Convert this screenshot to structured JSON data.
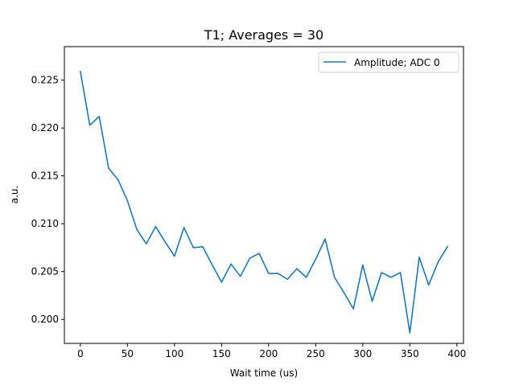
{
  "chart_data": {
    "type": "line",
    "title": "T1; Averages = 30",
    "xlabel": "Wait time (us)",
    "ylabel": "a.u.",
    "xlim": [
      -17,
      407
    ],
    "ylim": [
      0.1975,
      0.2285
    ],
    "xticks": [
      0,
      50,
      100,
      150,
      200,
      250,
      300,
      350,
      400
    ],
    "xtick_labels": [
      "0",
      "50",
      "100",
      "150",
      "200",
      "250",
      "300",
      "350",
      "400"
    ],
    "yticks": [
      0.2,
      0.205,
      0.21,
      0.215,
      0.22,
      0.225
    ],
    "ytick_labels": [
      "0.200",
      "0.205",
      "0.210",
      "0.215",
      "0.220",
      "0.225"
    ],
    "grid": false,
    "legend_position": "top-right",
    "series": [
      {
        "name": "Amplitude; ADC 0",
        "color": "#1f77b4",
        "x": [
          0,
          10,
          20,
          30,
          40,
          50,
          60,
          70,
          80,
          90,
          100,
          110,
          120,
          130,
          140,
          150,
          160,
          170,
          180,
          190,
          200,
          210,
          220,
          230,
          240,
          250,
          260,
          270,
          280,
          290,
          300,
          310,
          320,
          330,
          340,
          350,
          360,
          370,
          380,
          390
        ],
        "y": [
          0.2259,
          0.2203,
          0.2212,
          0.2158,
          0.2146,
          0.2124,
          0.2094,
          0.2079,
          0.2097,
          0.2081,
          0.2066,
          0.2096,
          0.2075,
          0.2076,
          0.2057,
          0.2039,
          0.2058,
          0.2045,
          0.2064,
          0.2069,
          0.2048,
          0.2048,
          0.2042,
          0.2053,
          0.2044,
          0.2063,
          0.2084,
          0.2044,
          0.2028,
          0.2011,
          0.2057,
          0.2019,
          0.2049,
          0.2044,
          0.2049,
          0.1986,
          0.2065,
          0.2036,
          0.206,
          0.2076
        ]
      }
    ]
  }
}
